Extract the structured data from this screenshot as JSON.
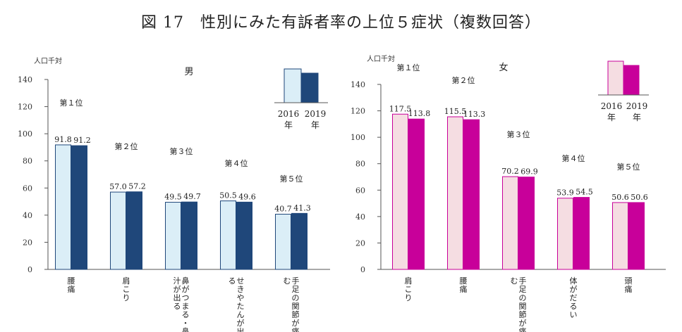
{
  "title": "図 17　性別にみた有訴者率の上位５症状（複数回答）",
  "chart_data": [
    {
      "type": "bar",
      "gender": "男",
      "unit": "人口千対",
      "ylim": [
        0,
        140
      ],
      "yticks": [
        "0",
        "20",
        "40",
        "60",
        "80",
        "100",
        "120",
        "140"
      ],
      "categories": [
        "腰痛",
        "肩こり",
        "鼻がつまる・鼻汁が出る",
        "せきやたんが出る",
        "手足の関節が痛む"
      ],
      "category_lines": [
        [
          "腰",
          "痛"
        ],
        [
          "肩",
          "こ",
          "り"
        ],
        [
          "鼻",
          "が",
          "つ",
          "ま",
          "る",
          "・",
          "鼻",
          "汁",
          "が",
          "出",
          "る"
        ],
        [
          "せ",
          "き",
          "や",
          "た",
          "ん",
          "が",
          "出",
          "る"
        ],
        [
          "手",
          "足",
          "の",
          "関",
          "節",
          "が",
          "痛",
          "む"
        ]
      ],
      "ranks": [
        "第１位",
        "第２位",
        "第３位",
        "第４位",
        "第５位"
      ],
      "series": [
        {
          "name": "2016年",
          "values": [
            91.8,
            57.0,
            49.5,
            50.5,
            40.7
          ],
          "labels": [
            "91.8",
            "57.0",
            "49.5",
            "50.5",
            "40.7"
          ],
          "color": "#dbeef7"
        },
        {
          "name": "2019年",
          "values": [
            91.2,
            57.2,
            49.7,
            49.6,
            41.3
          ],
          "labels": [
            "91.2",
            "57.2",
            "49.7",
            "49.6",
            "41.3"
          ],
          "color": "#1f477a"
        }
      ],
      "legend": {
        "y1": "2016",
        "y2": "2019",
        "suffix": "年"
      }
    },
    {
      "type": "bar",
      "gender": "女",
      "unit": "人口千対",
      "ylim": [
        0,
        140
      ],
      "yticks": [
        "0",
        "20",
        "40",
        "60",
        "80",
        "100",
        "120",
        "140"
      ],
      "categories": [
        "肩こり",
        "腰痛",
        "手足の関節が痛む",
        "体がだるい",
        "頭痛"
      ],
      "category_lines": [
        [
          "肩",
          "こ",
          "り"
        ],
        [
          "腰",
          "痛"
        ],
        [
          "手",
          "足",
          "の",
          "関",
          "節",
          "が",
          "痛",
          "む"
        ],
        [
          "体",
          "が",
          "だ",
          "る",
          "い"
        ],
        [
          "頭",
          "痛"
        ]
      ],
      "ranks": [
        "第１位",
        "第２位",
        "第３位",
        "第４位",
        "第５位"
      ],
      "series": [
        {
          "name": "2016年",
          "values": [
            117.5,
            115.5,
            70.2,
            53.9,
            50.6
          ],
          "labels": [
            "117.5",
            "115.5",
            "70.2",
            "53.9",
            "50.6"
          ],
          "color": "#f5dde2"
        },
        {
          "name": "2019年",
          "values": [
            113.8,
            113.3,
            69.9,
            54.5,
            50.6
          ],
          "labels": [
            "113.8",
            "113.3",
            "69.9",
            "54.5",
            "50.6"
          ],
          "color": "#c8009a"
        }
      ],
      "legend": {
        "y1": "2016",
        "y2": "2019",
        "suffix": "年"
      }
    }
  ]
}
